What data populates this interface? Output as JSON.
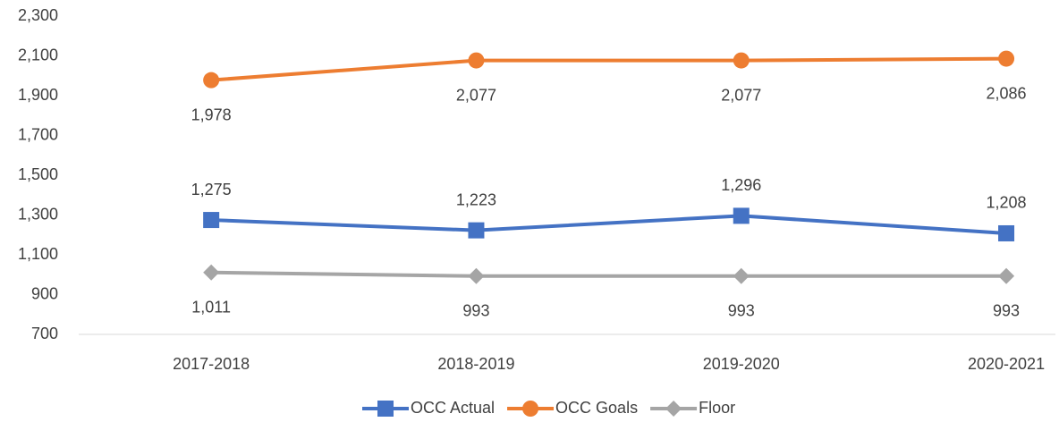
{
  "chart_data": {
    "type": "line",
    "categories": [
      "2017-2018",
      "2018-2019",
      "2019-2020",
      "2020-2021"
    ],
    "series": [
      {
        "name": "OCC Actual",
        "color": "#4472c4",
        "marker": "square",
        "label_position": "above",
        "values": [
          1275,
          1223,
          1296,
          1208
        ],
        "value_labels": [
          "1,275",
          "1,223",
          "1,296",
          "1,208"
        ]
      },
      {
        "name": "OCC Goals",
        "color": "#ed7d31",
        "marker": "circle",
        "label_position": "below",
        "values": [
          1978,
          2077,
          2077,
          2086
        ],
        "value_labels": [
          "1,978",
          "2,077",
          "2,077",
          "2,086"
        ]
      },
      {
        "name": "Floor",
        "color": "#a5a5a5",
        "marker": "diamond",
        "label_position": "below",
        "values": [
          1011,
          993,
          993,
          993
        ],
        "value_labels": [
          "1,011",
          "993",
          "993",
          "993"
        ]
      }
    ],
    "ylim": [
      700,
      2300
    ],
    "yticks": [
      {
        "value": 700,
        "label": "700"
      },
      {
        "value": 900,
        "label": "900"
      },
      {
        "value": 1100,
        "label": "1,100"
      },
      {
        "value": 1300,
        "label": "1,300"
      },
      {
        "value": 1500,
        "label": "1,500"
      },
      {
        "value": 1700,
        "label": "1,700"
      },
      {
        "value": 1900,
        "label": "1,900"
      },
      {
        "value": 2100,
        "label": "2,100"
      },
      {
        "value": 2300,
        "label": "2,300"
      }
    ],
    "grid": false,
    "legend": "bottom"
  }
}
